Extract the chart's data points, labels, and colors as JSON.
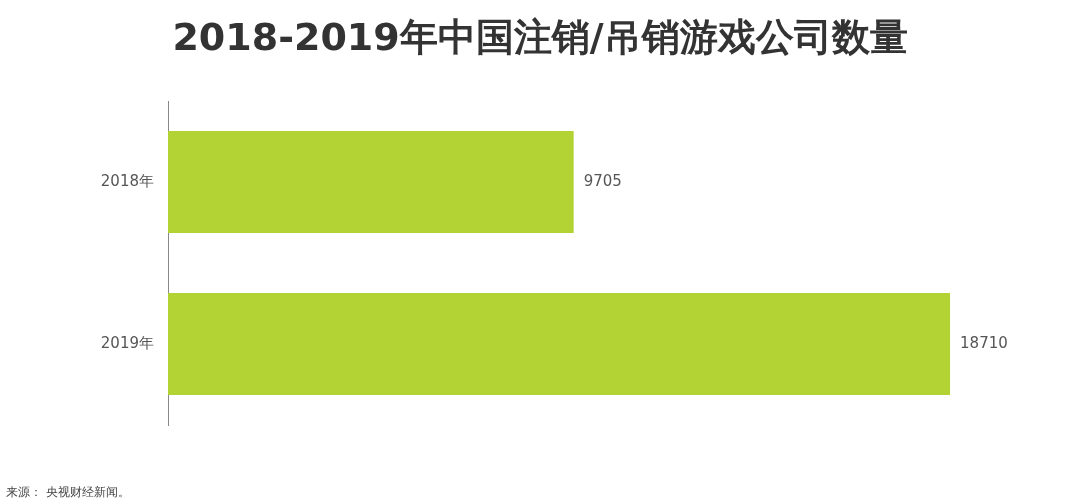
{
  "chart_data": {
    "type": "bar",
    "orientation": "horizontal",
    "title": "2018-2019年中国注销/吊销游戏公司数量",
    "categories": [
      "2018年",
      "2019年"
    ],
    "values": [
      9705,
      18710
    ],
    "color": "#b3d334",
    "data_labels": true,
    "legend": false,
    "annotations": [
      "来源：  央视财经新闻。"
    ]
  }
}
